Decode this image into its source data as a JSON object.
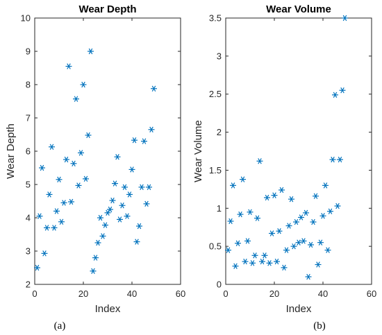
{
  "marker_color": "#0072BD",
  "marker_symbol": "*",
  "chart_data": [
    {
      "type": "scatter",
      "title": "Wear Depth",
      "xlabel": "Index",
      "ylabel": "Wear Depth",
      "panel_label": "(a)",
      "xlim": [
        0,
        60
      ],
      "ylim": [
        2,
        10
      ],
      "xticks": [
        0,
        20,
        40,
        60
      ],
      "yticks": [
        2,
        3,
        4,
        5,
        6,
        7,
        8,
        9,
        10
      ],
      "grid": false,
      "x": [
        1,
        2,
        3,
        4,
        5,
        6,
        7,
        8,
        9,
        10,
        11,
        12,
        13,
        14,
        15,
        16,
        17,
        18,
        19,
        20,
        21,
        22,
        23,
        24,
        25,
        26,
        27,
        28,
        29,
        30,
        31,
        32,
        33,
        34,
        35,
        36,
        37,
        38,
        39,
        40,
        41,
        42,
        43,
        44,
        45,
        46,
        47,
        48,
        49
      ],
      "y": [
        2.5,
        4.05,
        5.5,
        2.93,
        3.7,
        4.7,
        6.13,
        3.7,
        4.2,
        5.15,
        3.88,
        4.45,
        5.75,
        8.55,
        4.48,
        5.63,
        7.57,
        4.97,
        5.95,
        8.0,
        5.17,
        6.48,
        9.0,
        2.4,
        2.8,
        3.25,
        4.0,
        3.45,
        3.78,
        4.15,
        4.25,
        4.52,
        5.03,
        5.83,
        3.95,
        4.37,
        4.92,
        4.05,
        4.7,
        5.45,
        6.33,
        3.28,
        3.75,
        4.92,
        6.3,
        4.42,
        4.92,
        6.65,
        7.88
      ]
    },
    {
      "type": "scatter",
      "title": "Wear Volume",
      "xlabel": "Index",
      "ylabel": "Wear Volume",
      "panel_label": "(b)",
      "xlim": [
        0,
        60
      ],
      "ylim": [
        0,
        3.5
      ],
      "xticks": [
        0,
        20,
        40,
        60
      ],
      "yticks": [
        0,
        0.5,
        1,
        1.5,
        2,
        2.5,
        3,
        3.5
      ],
      "ytick_labels": [
        "0",
        "0.5",
        "1",
        "1.5",
        "2",
        "2.5",
        "3",
        "3.5"
      ],
      "grid": false,
      "x": [
        1,
        2,
        3,
        4,
        5,
        6,
        7,
        8,
        9,
        10,
        11,
        12,
        13,
        14,
        15,
        16,
        17,
        18,
        19,
        20,
        21,
        22,
        23,
        24,
        25,
        26,
        27,
        28,
        29,
        30,
        31,
        32,
        33,
        34,
        35,
        36,
        37,
        38,
        39,
        40,
        41,
        42,
        43,
        44,
        45,
        46,
        47,
        48,
        49
      ],
      "y": [
        0.45,
        0.83,
        1.3,
        0.24,
        0.54,
        0.92,
        1.38,
        0.3,
        0.57,
        0.95,
        0.28,
        0.38,
        0.87,
        1.62,
        0.3,
        0.38,
        1.14,
        0.28,
        0.67,
        1.17,
        0.3,
        0.7,
        1.24,
        0.22,
        0.45,
        0.77,
        1.12,
        0.5,
        0.82,
        0.55,
        0.88,
        0.57,
        0.94,
        0.1,
        0.52,
        0.82,
        1.16,
        0.26,
        0.55,
        0.9,
        1.3,
        0.45,
        0.96,
        1.64,
        2.49,
        1.03,
        1.64,
        2.55,
        3.5
      ]
    }
  ]
}
